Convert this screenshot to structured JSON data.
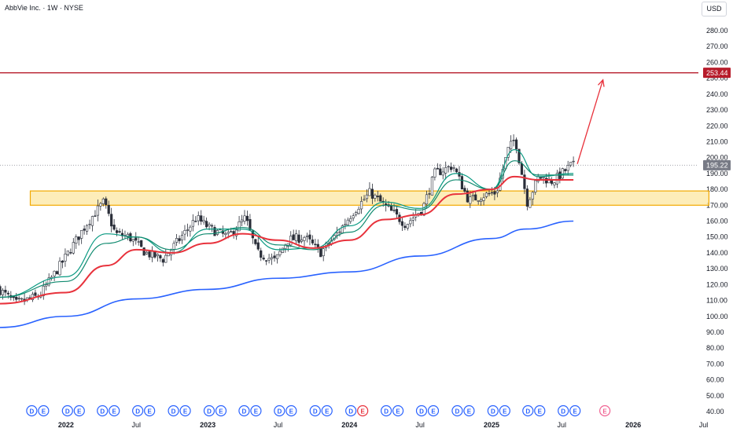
{
  "header": {
    "title": "AbbVie Inc. · 1W · NYSE",
    "currency": "USD"
  },
  "colors": {
    "up": "#ffffff",
    "down": "#2a2e39",
    "wick": "#2a2e39",
    "ema_fast": "#089981",
    "ema_mid": "#0f8a6f",
    "ema_slow": "#e8323c",
    "ma_long": "#2962ff",
    "resistance": "#b71c2b",
    "zone_fill": "#fde9a8",
    "zone_stroke": "#f2a900",
    "current_line": "#9598a1",
    "arrow": "#e8323c"
  },
  "chart_data": {
    "type": "candlestick",
    "title": "AbbVie Inc. · 1W · NYSE",
    "ylim": [
      40,
      290
    ],
    "y_scale": "linear",
    "y_ticks": [
      40,
      50,
      60,
      70,
      80,
      90,
      100,
      110,
      120,
      130,
      140,
      150,
      160,
      170,
      180,
      190,
      200,
      210,
      220,
      230,
      240,
      250,
      260,
      270,
      280
    ],
    "x_range": [
      "2021-07-15",
      "2026-09-15"
    ],
    "x_ticks": [
      {
        "label": "2022",
        "date": "2022-01-01"
      },
      {
        "label": "Jul",
        "date": "2022-07-01"
      },
      {
        "label": "2023",
        "date": "2023-01-01"
      },
      {
        "label": "Jul",
        "date": "2023-07-01"
      },
      {
        "label": "2024",
        "date": "2024-01-01"
      },
      {
        "label": "Jul",
        "date": "2024-07-01"
      },
      {
        "label": "2025",
        "date": "2025-01-01"
      },
      {
        "label": "Jul",
        "date": "2025-07-01"
      },
      {
        "label": "2026",
        "date": "2026-01-01"
      },
      {
        "label": "Jul",
        "date": "2026-07-01"
      }
    ],
    "price_anchors": [
      [
        "2021-07-15",
        118
      ],
      [
        "2021-09-01",
        108
      ],
      [
        "2021-11-01",
        113
      ],
      [
        "2022-01-01",
        135
      ],
      [
        "2022-03-01",
        158
      ],
      [
        "2022-04-15",
        172
      ],
      [
        "2022-05-15",
        152
      ],
      [
        "2022-06-20",
        150
      ],
      [
        "2022-08-01",
        140
      ],
      [
        "2022-09-15",
        136
      ],
      [
        "2022-11-01",
        150
      ],
      [
        "2022-12-10",
        162
      ],
      [
        "2023-01-15",
        155
      ],
      [
        "2023-03-01",
        150
      ],
      [
        "2023-04-15",
        162
      ],
      [
        "2023-05-15",
        140
      ],
      [
        "2023-07-01",
        135
      ],
      [
        "2023-08-01",
        148
      ],
      [
        "2023-09-15",
        150
      ],
      [
        "2023-10-25",
        140
      ],
      [
        "2023-12-01",
        150
      ],
      [
        "2024-01-15",
        165
      ],
      [
        "2024-03-01",
        178
      ],
      [
        "2024-04-15",
        168
      ],
      [
        "2024-06-01",
        158
      ],
      [
        "2024-07-15",
        168
      ],
      [
        "2024-08-15",
        190
      ],
      [
        "2024-10-01",
        195
      ],
      [
        "2024-11-10",
        173
      ],
      [
        "2024-12-15",
        176
      ],
      [
        "2025-01-20",
        178
      ],
      [
        "2025-02-20",
        205
      ],
      [
        "2025-03-10",
        212
      ],
      [
        "2025-04-10",
        172
      ],
      [
        "2025-05-10",
        188
      ],
      [
        "2025-06-15",
        185
      ],
      [
        "2025-07-31",
        195
      ]
    ],
    "series": [
      {
        "name": "",
        "type": "line",
        "points": [
          [
            "2021-07-15",
            112
          ],
          [
            "2022-01-01",
            125
          ],
          [
            "2022-04-15",
            152
          ],
          [
            "2022-07-01",
            150
          ],
          [
            "2022-10-01",
            140
          ],
          [
            "2023-01-01",
            155
          ],
          [
            "2023-04-01",
            155
          ],
          [
            "2023-07-01",
            142
          ],
          [
            "2023-10-01",
            143
          ],
          [
            "2024-01-01",
            157
          ],
          [
            "2024-04-01",
            172
          ],
          [
            "2024-07-01",
            168
          ],
          [
            "2024-10-01",
            190
          ],
          [
            "2025-01-01",
            180
          ],
          [
            "2025-03-01",
            205
          ],
          [
            "2025-05-01",
            188
          ],
          [
            "2025-07-31",
            190
          ]
        ]
      },
      {
        "name": "",
        "type": "line",
        "points": [
          [
            "2021-07-15",
            112
          ],
          [
            "2022-01-01",
            122
          ],
          [
            "2022-04-15",
            146
          ],
          [
            "2022-07-01",
            150
          ],
          [
            "2022-10-01",
            142
          ],
          [
            "2023-01-01",
            152
          ],
          [
            "2023-04-01",
            156
          ],
          [
            "2023-07-01",
            145
          ],
          [
            "2023-10-01",
            142
          ],
          [
            "2024-01-01",
            153
          ],
          [
            "2024-04-01",
            170
          ],
          [
            "2024-07-01",
            167
          ],
          [
            "2024-10-01",
            186
          ],
          [
            "2025-01-01",
            180
          ],
          [
            "2025-03-01",
            198
          ],
          [
            "2025-05-01",
            189
          ],
          [
            "2025-07-31",
            189
          ]
        ]
      },
      {
        "name": "",
        "type": "line",
        "points": [
          [
            "2021-07-15",
            108
          ],
          [
            "2022-01-01",
            115
          ],
          [
            "2022-04-15",
            132
          ],
          [
            "2022-07-01",
            142
          ],
          [
            "2022-10-01",
            140
          ],
          [
            "2023-01-01",
            146
          ],
          [
            "2023-04-01",
            152
          ],
          [
            "2023-07-01",
            148
          ],
          [
            "2023-10-01",
            143
          ],
          [
            "2024-01-01",
            148
          ],
          [
            "2024-04-01",
            161
          ],
          [
            "2024-07-01",
            164
          ],
          [
            "2024-10-01",
            177
          ],
          [
            "2025-01-01",
            180
          ],
          [
            "2025-03-01",
            188
          ],
          [
            "2025-05-01",
            186
          ],
          [
            "2025-07-31",
            186
          ]
        ]
      },
      {
        "name": "",
        "type": "line",
        "points": [
          [
            "2021-07-15",
            93
          ],
          [
            "2022-01-01",
            100
          ],
          [
            "2022-07-01",
            111
          ],
          [
            "2023-01-01",
            117
          ],
          [
            "2023-07-01",
            124
          ],
          [
            "2024-01-01",
            128
          ],
          [
            "2024-07-01",
            138
          ],
          [
            "2025-01-01",
            149
          ],
          [
            "2025-04-01",
            155
          ],
          [
            "2025-07-31",
            160
          ]
        ]
      }
    ],
    "zone": {
      "y_low": 170,
      "y_high": 179,
      "x_start": "2021-10-01",
      "x_end": "2026-07-15"
    },
    "resistance": {
      "value": 253.44,
      "label": "253.44"
    },
    "current_price": {
      "value": 195.22,
      "label": "195.22"
    },
    "projection_arrow": {
      "from": [
        "2025-08-10",
        196
      ],
      "to": [
        "2025-10-15",
        249
      ]
    },
    "events": [
      {
        "date": "2021-10-20",
        "marks": [
          "D",
          "E"
        ],
        "upcoming": false
      },
      {
        "date": "2022-01-20",
        "marks": [
          "D",
          "E"
        ],
        "upcoming": false
      },
      {
        "date": "2022-04-20",
        "marks": [
          "D",
          "E"
        ],
        "upcoming": false
      },
      {
        "date": "2022-07-20",
        "marks": [
          "D",
          "E"
        ],
        "upcoming": false
      },
      {
        "date": "2022-10-20",
        "marks": [
          "D",
          "E"
        ],
        "upcoming": false
      },
      {
        "date": "2023-01-20",
        "marks": [
          "D",
          "E"
        ],
        "upcoming": false
      },
      {
        "date": "2023-04-20",
        "marks": [
          "D",
          "E"
        ],
        "upcoming": false
      },
      {
        "date": "2023-07-20",
        "marks": [
          "D",
          "E"
        ],
        "upcoming": false
      },
      {
        "date": "2023-10-20",
        "marks": [
          "D",
          "E"
        ],
        "upcoming": false
      },
      {
        "date": "2024-01-20",
        "marks": [
          "D",
          "E"
        ],
        "upcoming": false
      },
      {
        "date": "2024-04-20",
        "marks": [
          "D",
          "E"
        ],
        "upcoming": false
      },
      {
        "date": "2024-07-20",
        "marks": [
          "D",
          "E"
        ],
        "upcoming": false
      },
      {
        "date": "2024-10-20",
        "marks": [
          "D",
          "E"
        ],
        "upcoming": false
      },
      {
        "date": "2025-01-20",
        "marks": [
          "D",
          "E"
        ],
        "upcoming": false
      },
      {
        "date": "2025-04-20",
        "marks": [
          "D",
          "E"
        ],
        "upcoming": false
      },
      {
        "date": "2025-07-20",
        "marks": [
          "D",
          "E"
        ],
        "upcoming": false
      },
      {
        "date": "2025-10-20",
        "marks": [
          "E"
        ],
        "upcoming": true
      }
    ]
  }
}
